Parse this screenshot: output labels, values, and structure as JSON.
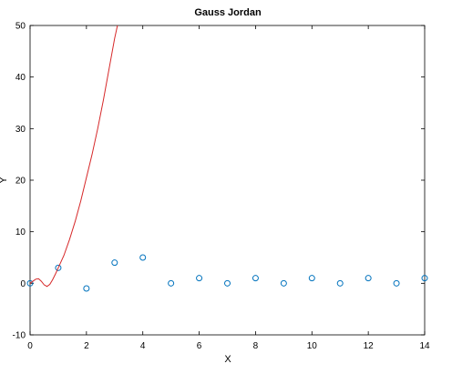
{
  "chart_data": {
    "type": "scatter",
    "title": "Gauss Jordan",
    "xlabel": "X",
    "ylabel": "Y",
    "xlim": [
      0,
      14
    ],
    "ylim": [
      -10,
      50
    ],
    "xticks": [
      0,
      2,
      4,
      6,
      8,
      10,
      12,
      14
    ],
    "yticks": [
      -10,
      0,
      10,
      20,
      30,
      40,
      50
    ],
    "grid": false,
    "series": [
      {
        "kind": "scatter",
        "marker": "circle-open",
        "color": "#0072bd",
        "x": [
          0,
          1,
          2,
          3,
          4,
          5,
          6,
          7,
          8,
          9,
          10,
          11,
          12,
          13,
          14
        ],
        "y": [
          0,
          3,
          -1,
          4,
          5,
          0,
          1,
          0,
          1,
          0,
          1,
          0,
          1,
          0,
          1
        ]
      },
      {
        "kind": "line",
        "color": "#d62728",
        "x": [
          0,
          0.1,
          0.2,
          0.3,
          0.4,
          0.5,
          0.6,
          0.7,
          0.8,
          0.9,
          1.0,
          1.2,
          1.4,
          1.6,
          1.8,
          2.0,
          2.2,
          2.4,
          2.6,
          2.8,
          3.0,
          3.1
        ],
        "y": [
          0,
          0.4,
          0.8,
          0.9,
          0.4,
          -0.3,
          -0.6,
          -0.2,
          0.7,
          1.8,
          3.0,
          5.4,
          8.5,
          12.0,
          16.0,
          20.5,
          25.0,
          30.0,
          35.5,
          41.5,
          47.5,
          50.0
        ]
      }
    ]
  }
}
